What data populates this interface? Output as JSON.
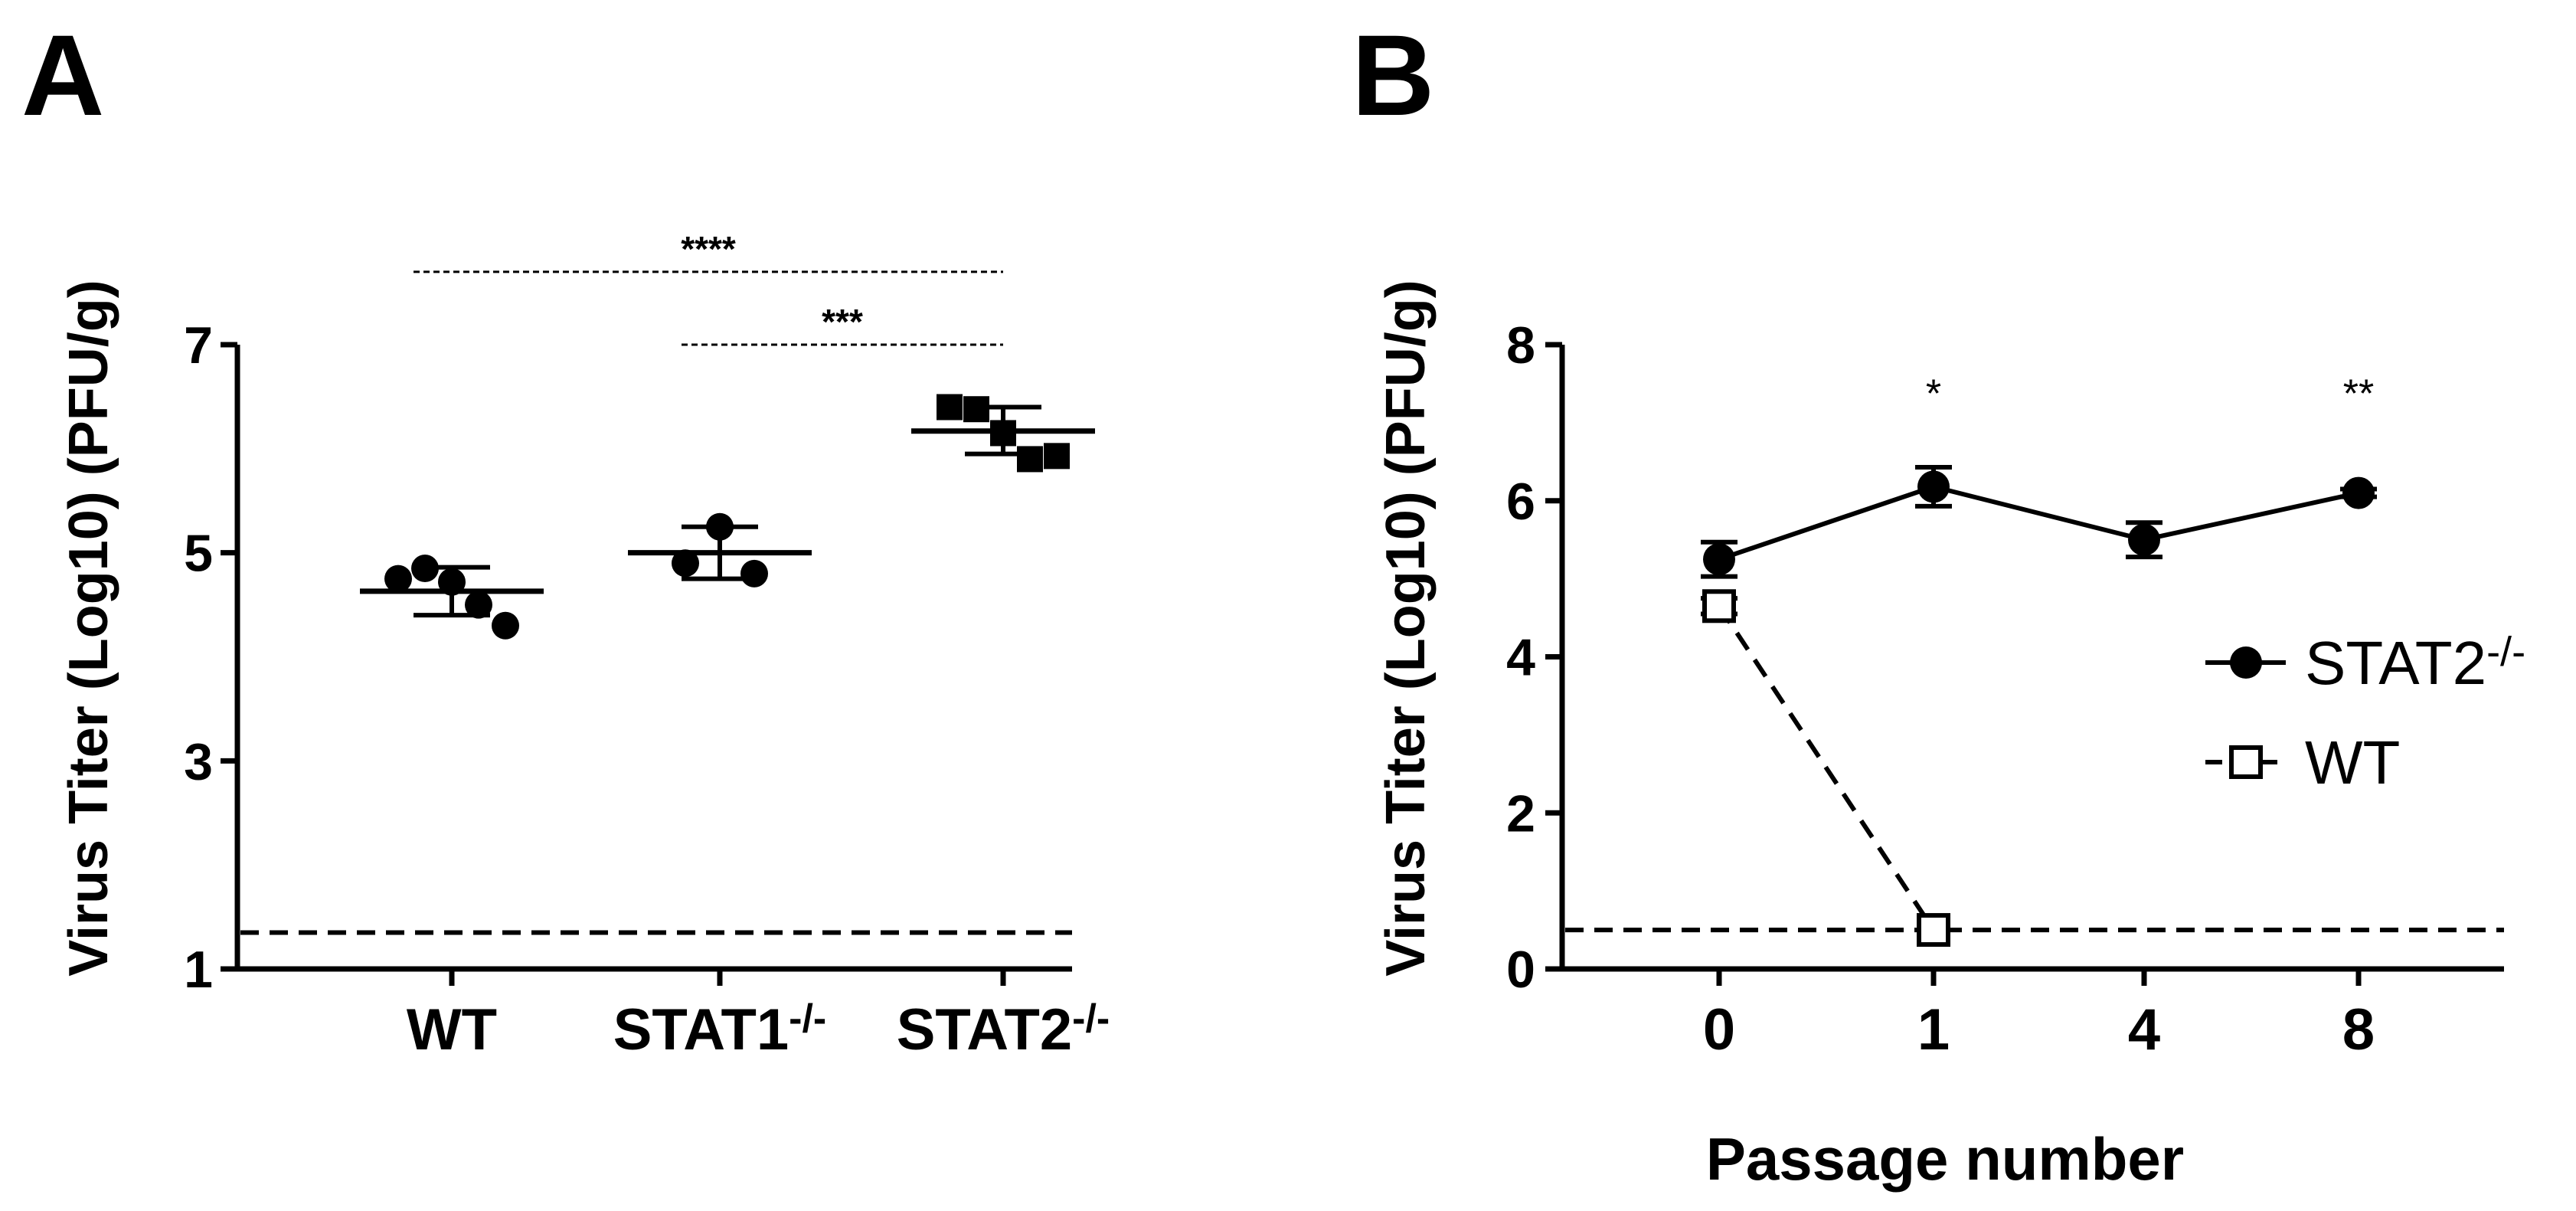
{
  "panels": {
    "a": {
      "label": "A"
    },
    "b": {
      "label": "B"
    }
  },
  "chart_data": [
    {
      "type": "scatter",
      "panel": "A",
      "ylabel": "Virus Titer (Log10) (PFU/g)",
      "ylim": [
        1,
        7
      ],
      "yticks": [
        1,
        3,
        5,
        7
      ],
      "categories": [
        {
          "name": "WT",
          "superscript": ""
        },
        {
          "name": "STAT1",
          "superscript": "-/-"
        },
        {
          "name": "STAT2",
          "superscript": "-/-"
        }
      ],
      "groups": [
        {
          "category": "WT",
          "marker": "circle",
          "points": [
            4.75,
            4.85,
            4.72,
            4.5,
            4.3
          ],
          "mean": 4.63,
          "sd_low": 4.4,
          "sd_high": 4.86
        },
        {
          "category": "STAT1",
          "marker": "circle",
          "points": [
            5.25,
            4.9,
            4.8
          ],
          "mean": 5.0,
          "sd_low": 4.75,
          "sd_high": 5.25
        },
        {
          "category": "STAT2",
          "marker": "square",
          "points": [
            6.4,
            6.38,
            6.15,
            5.9,
            5.93
          ],
          "mean": 6.17,
          "sd_low": 5.95,
          "sd_high": 6.4
        }
      ],
      "detection_limit": 1.35,
      "significance": [
        {
          "from": "WT",
          "to": "STAT2",
          "label": "****",
          "y": 7.7
        },
        {
          "from": "STAT1",
          "to": "STAT2",
          "label": "***",
          "y": 7.0
        }
      ]
    },
    {
      "type": "line",
      "panel": "B",
      "xlabel": "Passage number",
      "ylabel": "Virus Titer (Log10) (PFU/g)",
      "ylim": [
        0,
        8
      ],
      "yticks": [
        0,
        2,
        4,
        6,
        8
      ],
      "categories": [
        "0",
        "1",
        "4",
        "8"
      ],
      "series": [
        {
          "name": "STAT2",
          "superscript": "-/-",
          "marker": "filled-circle",
          "line": "solid",
          "values": [
            5.25,
            6.18,
            5.5,
            6.1
          ],
          "errors": [
            0.22,
            0.25,
            0.22,
            0.05
          ]
        },
        {
          "name": "WT",
          "superscript": "",
          "marker": "open-square",
          "line": "dashed",
          "values": [
            4.65,
            0.5,
            null,
            null
          ],
          "errors": [
            0.1,
            0.0,
            null,
            null
          ]
        }
      ],
      "detection_limit": 0.5,
      "annotations": [
        {
          "category": "1",
          "label": "*",
          "y": 7.2
        },
        {
          "category": "8",
          "label": "**",
          "y": 7.2
        }
      ],
      "legend": "right"
    }
  ]
}
